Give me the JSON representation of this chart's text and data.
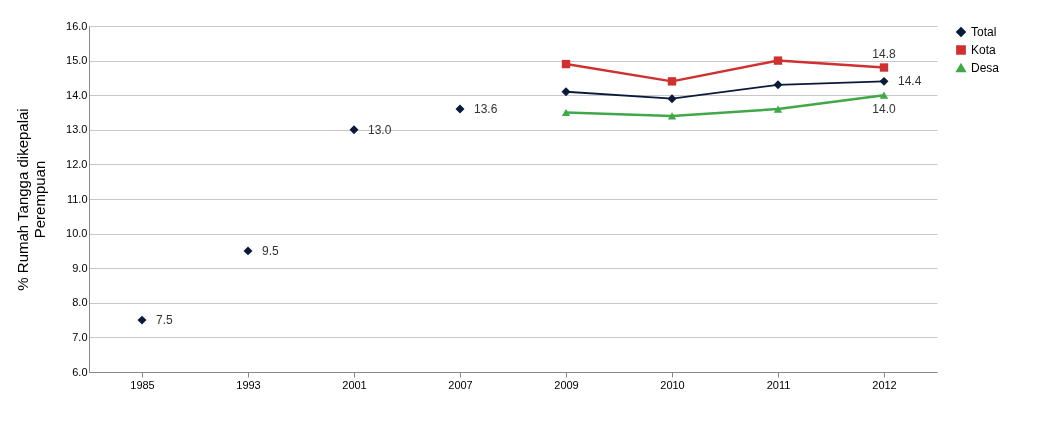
{
  "chart_data": {
    "type": "line",
    "ylabel": "% Rumah Tangga dikepalai Perempuan",
    "categories": [
      "1985",
      "1993",
      "2001",
      "2007",
      "2009",
      "2010",
      "2011",
      "2012"
    ],
    "series": [
      {
        "type": "scatter",
        "color": "#0a1a3a",
        "marker": "diamond",
        "values": [
          7.5,
          9.5,
          13.0,
          13.6,
          null,
          null,
          null,
          null
        ],
        "value_labels": [
          "7.5",
          "9.5",
          "13.0",
          "13.6",
          null,
          null,
          null,
          null
        ]
      },
      {
        "name": "Total",
        "color": "#0a1a3a",
        "marker": "diamond",
        "values": [
          null,
          null,
          null,
          null,
          14.1,
          13.9,
          14.3,
          14.4
        ],
        "value_labels": [
          null,
          null,
          null,
          null,
          null,
          null,
          null,
          "14.4"
        ]
      },
      {
        "name": "Kota",
        "color": "#d03030",
        "marker": "square",
        "values": [
          null,
          null,
          null,
          null,
          14.9,
          14.4,
          15.0,
          14.8
        ],
        "value_labels": [
          null,
          null,
          null,
          null,
          null,
          null,
          null,
          "14.8"
        ]
      },
      {
        "name": "Desa",
        "color": "#40a848",
        "marker": "triangle",
        "values": [
          null,
          null,
          null,
          null,
          13.5,
          13.4,
          13.6,
          14.0
        ],
        "value_labels": [
          null,
          null,
          null,
          null,
          null,
          null,
          null,
          "14.0"
        ]
      }
    ],
    "ylim": [
      6.0,
      16.0
    ],
    "yticks": [
      {
        "value": 6,
        "label": "6.0"
      },
      {
        "value": 7,
        "label": "7.0"
      },
      {
        "value": 8,
        "label": "8.0"
      },
      {
        "value": 9,
        "label": "9.0"
      },
      {
        "value": 10,
        "label": "10.0"
      },
      {
        "value": 11,
        "label": "11.0"
      },
      {
        "value": 12,
        "label": "12.0"
      },
      {
        "value": 13,
        "label": "13.0"
      },
      {
        "value": 14,
        "label": "14.0"
      },
      {
        "value": 15,
        "label": "15.0"
      },
      {
        "value": 16,
        "label": "16.0"
      }
    ],
    "grid": "y",
    "legend": "right"
  }
}
